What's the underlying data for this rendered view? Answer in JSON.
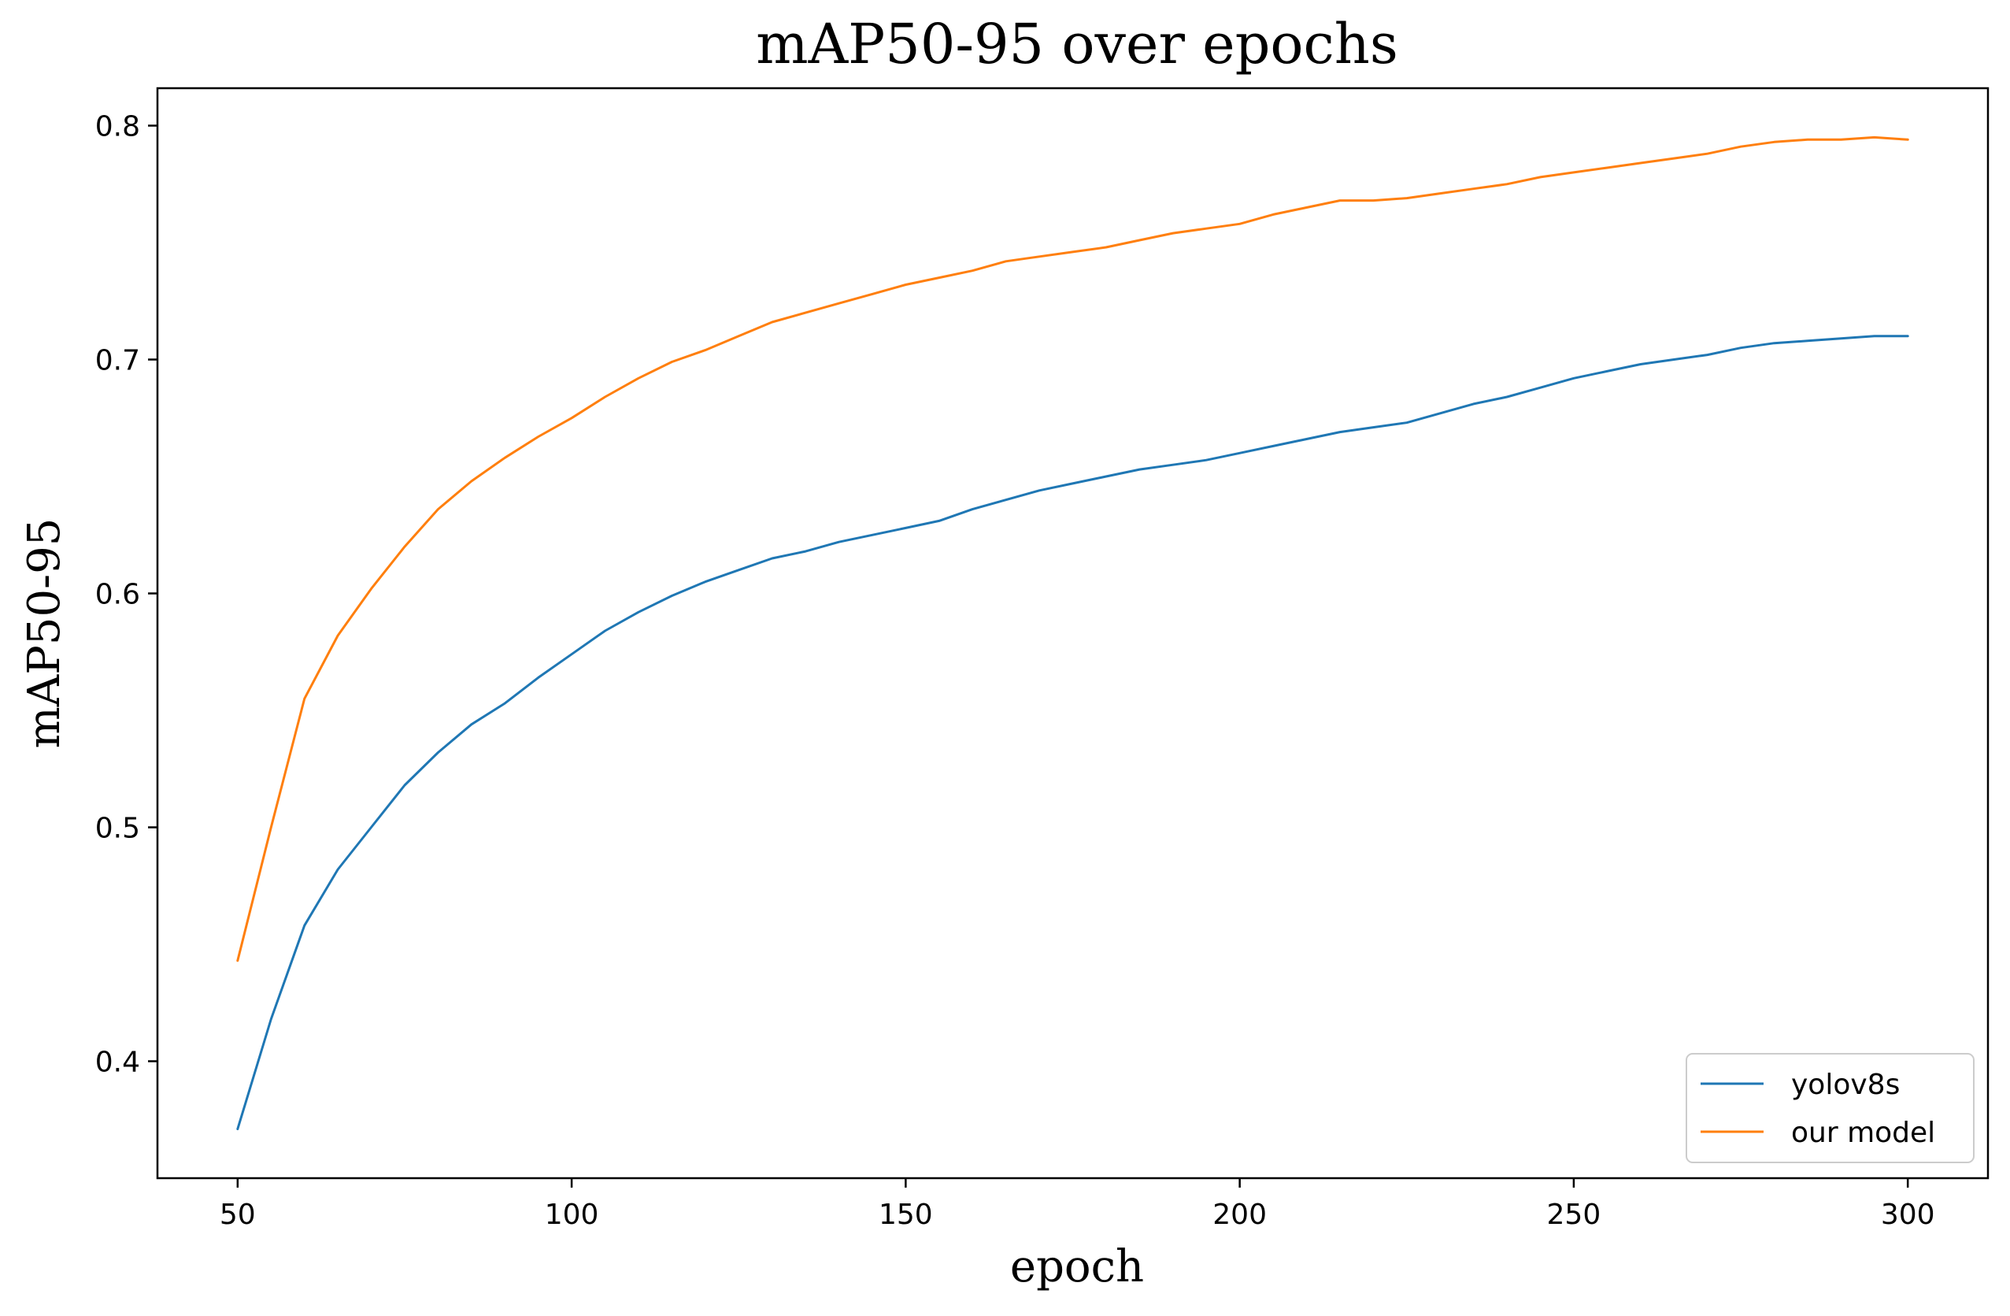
{
  "chart_data": {
    "type": "line",
    "title": "mAP50-95 over epochs",
    "xlabel": "epoch",
    "ylabel": "mAP50-95",
    "xlim": [
      38,
      312
    ],
    "ylim": [
      0.35,
      0.816
    ],
    "xticks": [
      50,
      100,
      150,
      200,
      250,
      300
    ],
    "yticks": [
      0.4,
      0.5,
      0.6,
      0.7,
      0.8
    ],
    "xtick_labels": [
      "50",
      "100",
      "150",
      "200",
      "250",
      "300"
    ],
    "ytick_labels": [
      "0.4",
      "0.5",
      "0.6",
      "0.7",
      "0.8"
    ],
    "grid": false,
    "legend_position": "lower-right",
    "x": [
      50,
      55,
      60,
      65,
      70,
      75,
      80,
      85,
      90,
      95,
      100,
      105,
      110,
      115,
      120,
      125,
      130,
      135,
      140,
      145,
      150,
      155,
      160,
      165,
      170,
      175,
      180,
      185,
      190,
      195,
      200,
      205,
      210,
      215,
      220,
      225,
      230,
      235,
      240,
      245,
      250,
      255,
      260,
      265,
      270,
      275,
      280,
      285,
      290,
      295,
      300
    ],
    "series": [
      {
        "name": "yolov8s",
        "color": "#1f77b4",
        "values": [
          0.371,
          0.418,
          0.458,
          0.482,
          0.5,
          0.518,
          0.532,
          0.544,
          0.553,
          0.564,
          0.574,
          0.584,
          0.592,
          0.599,
          0.605,
          0.61,
          0.615,
          0.618,
          0.622,
          0.625,
          0.628,
          0.631,
          0.636,
          0.64,
          0.644,
          0.647,
          0.65,
          0.653,
          0.655,
          0.657,
          0.66,
          0.663,
          0.666,
          0.669,
          0.671,
          0.673,
          0.677,
          0.681,
          0.684,
          0.688,
          0.692,
          0.695,
          0.698,
          0.7,
          0.702,
          0.705,
          0.707,
          0.708,
          0.709,
          0.71,
          0.71
        ]
      },
      {
        "name": "our model",
        "color": "#ff7f0e",
        "values": [
          0.443,
          0.5,
          0.555,
          0.582,
          0.602,
          0.62,
          0.636,
          0.648,
          0.658,
          0.667,
          0.675,
          0.684,
          0.692,
          0.699,
          0.704,
          0.71,
          0.716,
          0.72,
          0.724,
          0.728,
          0.732,
          0.735,
          0.738,
          0.742,
          0.744,
          0.746,
          0.748,
          0.751,
          0.754,
          0.756,
          0.758,
          0.762,
          0.765,
          0.768,
          0.768,
          0.769,
          0.771,
          0.773,
          0.775,
          0.778,
          0.78,
          0.782,
          0.784,
          0.786,
          0.788,
          0.791,
          0.793,
          0.794,
          0.794,
          0.795,
          0.794
        ]
      }
    ]
  }
}
